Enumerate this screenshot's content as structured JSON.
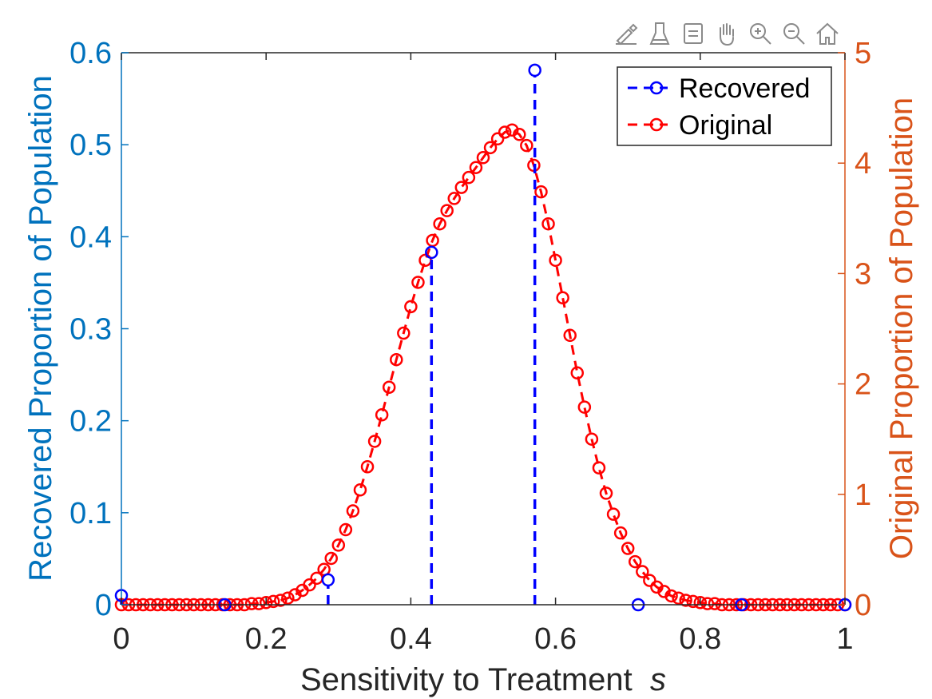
{
  "toolbar": {
    "buttons": [
      {
        "icon": "brush-edit-icon"
      },
      {
        "icon": "data-tips-icon"
      },
      {
        "icon": "legend-toggle-icon"
      },
      {
        "icon": "pan-hand-icon"
      },
      {
        "icon": "zoom-in-icon"
      },
      {
        "icon": "zoom-out-icon"
      },
      {
        "icon": "home-restore-icon"
      }
    ]
  },
  "chart_data": {
    "type": "scatter",
    "title": "",
    "xlabel": "Sensitivity to Treatment",
    "xlabel_italic": "s",
    "ylabel_left": "Recovered Proportion of Population",
    "ylabel_right": "Original Proportion of Population",
    "xlim": [
      0,
      1
    ],
    "ylim_left": [
      0,
      0.6
    ],
    "ylim_right": [
      0,
      5
    ],
    "x_ticks": [
      "0",
      "0.2",
      "0.4",
      "0.6",
      "0.8",
      "1"
    ],
    "x_tick_values": [
      0,
      0.2,
      0.4,
      0.6,
      0.8,
      1
    ],
    "y_left_ticks": [
      "0",
      "0.1",
      "0.2",
      "0.3",
      "0.4",
      "0.5",
      "0.6"
    ],
    "y_left_tick_values": [
      0,
      0.1,
      0.2,
      0.3,
      0.4,
      0.5,
      0.6
    ],
    "y_right_ticks": [
      "0",
      "1",
      "2",
      "3",
      "4",
      "5"
    ],
    "y_right_tick_values": [
      0,
      1,
      2,
      3,
      4,
      5
    ],
    "grid": false,
    "legend_position": "top-right",
    "colors": {
      "left_axis": "#0072BD",
      "right_axis": "#D95319",
      "recovered": "#0000FF",
      "original": "#FF0000",
      "axes": "#262626"
    },
    "series": [
      {
        "name": "Recovered",
        "axis": "left",
        "style": "stem-dashed-circle",
        "x": [
          0,
          0.1429,
          0.2857,
          0.4286,
          0.5714,
          0.7143,
          0.8571,
          1
        ],
        "y": [
          0.01,
          0.0,
          0.027,
          0.383,
          0.581,
          0.0,
          0.0,
          0.0
        ]
      },
      {
        "name": "Original",
        "axis": "right",
        "style": "dashed-line-circle",
        "x": [
          0,
          0.01,
          0.02,
          0.03,
          0.04,
          0.05,
          0.06,
          0.07,
          0.08,
          0.09,
          0.1,
          0.11,
          0.12,
          0.13,
          0.14,
          0.15,
          0.16,
          0.17,
          0.18,
          0.19,
          0.2,
          0.21,
          0.22,
          0.23,
          0.24,
          0.25,
          0.26,
          0.27,
          0.28,
          0.29,
          0.3,
          0.31,
          0.32,
          0.33,
          0.34,
          0.35,
          0.36,
          0.37,
          0.38,
          0.39,
          0.4,
          0.41,
          0.42,
          0.43,
          0.44,
          0.45,
          0.46,
          0.47,
          0.48,
          0.49,
          0.5,
          0.51,
          0.52,
          0.53,
          0.54,
          0.55,
          0.56,
          0.57,
          0.58,
          0.59,
          0.6,
          0.61,
          0.62,
          0.63,
          0.64,
          0.65,
          0.66,
          0.67,
          0.68,
          0.69,
          0.7,
          0.71,
          0.72,
          0.73,
          0.74,
          0.75,
          0.76,
          0.77,
          0.78,
          0.79,
          0.8,
          0.81,
          0.82,
          0.83,
          0.84,
          0.85,
          0.86,
          0.87,
          0.88,
          0.89,
          0.9,
          0.91,
          0.92,
          0.93,
          0.94,
          0.95,
          0.96,
          0.97,
          0.98,
          0.99,
          1
        ],
        "y": [
          0.0,
          0.0,
          0.0,
          0.0,
          0.0,
          0.0,
          0.0,
          0.0,
          0.0,
          0.0,
          0.0,
          0.0,
          0.0,
          0.0,
          0.0,
          0.0,
          0.0,
          0.0,
          0.01,
          0.01,
          0.02,
          0.03,
          0.04,
          0.06,
          0.09,
          0.13,
          0.18,
          0.24,
          0.32,
          0.42,
          0.54,
          0.68,
          0.85,
          1.04,
          1.25,
          1.48,
          1.72,
          1.97,
          2.22,
          2.46,
          2.7,
          2.92,
          3.12,
          3.3,
          3.45,
          3.57,
          3.68,
          3.78,
          3.87,
          3.96,
          4.05,
          4.14,
          4.22,
          4.28,
          4.3,
          4.26,
          4.16,
          3.98,
          3.74,
          3.45,
          3.12,
          2.78,
          2.44,
          2.1,
          1.79,
          1.5,
          1.24,
          1.01,
          0.82,
          0.65,
          0.51,
          0.39,
          0.3,
          0.22,
          0.16,
          0.12,
          0.08,
          0.06,
          0.04,
          0.03,
          0.02,
          0.01,
          0.01,
          0.0,
          0.0,
          0.0,
          0.0,
          0.0,
          0.0,
          0.0,
          0.0,
          0.0,
          0.0,
          0.0,
          0.0,
          0.0,
          0.0,
          0.0,
          0.0,
          0.0,
          0.0
        ]
      }
    ]
  }
}
